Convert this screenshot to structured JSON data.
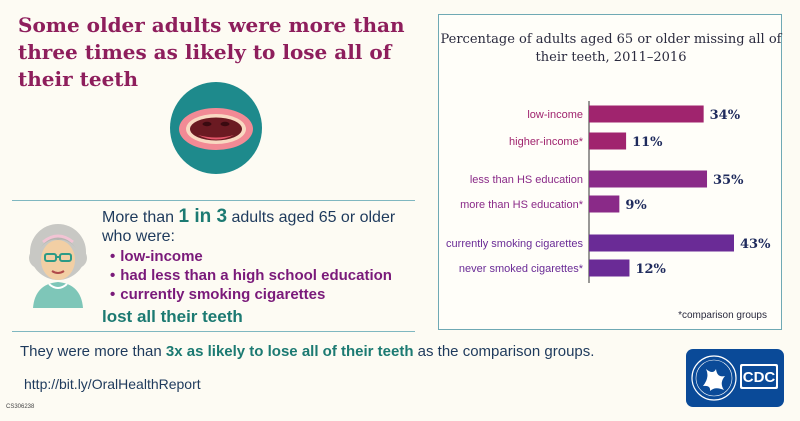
{
  "headline": "Some older adults were more than three times as likely to lose all of their teeth",
  "callout": {
    "prefix": "More than ",
    "highlight": "1 in 3",
    "suffix": " adults aged 65 or older who were:",
    "bullets": [
      "low-income",
      "had less than a high school education",
      "currently smoking cigarettes"
    ],
    "conclusion": "lost all their teeth"
  },
  "summary": {
    "prefix": "They were more than ",
    "highlight": "3x as likely to lose all of their teeth",
    "suffix": " as the comparison groups."
  },
  "url": "http://bit.ly/OralHealthReport",
  "code": "CS306238",
  "logo_text": "CDC",
  "icons": {
    "mouth": "mouth-no-teeth-icon",
    "avatar": "older-woman-icon",
    "logo": "cdc-logo-icon"
  },
  "colors": {
    "headline": "#8e1e5c",
    "teal": "#1c7a72",
    "income": "#a0246e",
    "education": "#8a2a88",
    "smoking": "#6a2b96"
  },
  "chart_data": {
    "type": "bar",
    "orientation": "horizontal",
    "title": "Percentage of adults aged 65 or older missing all of their teeth, 2011–2016",
    "categories": [
      "low-income",
      "higher-income*",
      "less than HS education",
      "more than HS education*",
      "currently smoking cigarettes",
      "never smoked cigarettes*"
    ],
    "values": [
      34,
      11,
      35,
      9,
      43,
      12
    ],
    "value_labels": [
      "34%",
      "11%",
      "35%",
      "9%",
      "43%",
      "12%"
    ],
    "groups": [
      {
        "name": "income",
        "color": "#a0246e",
        "indices": [
          0,
          1
        ]
      },
      {
        "name": "education",
        "color": "#8a2a88",
        "indices": [
          2,
          3
        ]
      },
      {
        "name": "smoking",
        "color": "#6a2b96",
        "indices": [
          4,
          5
        ]
      }
    ],
    "xlim": [
      0,
      43
    ],
    "footnote": "*comparison groups",
    "grid": false
  }
}
